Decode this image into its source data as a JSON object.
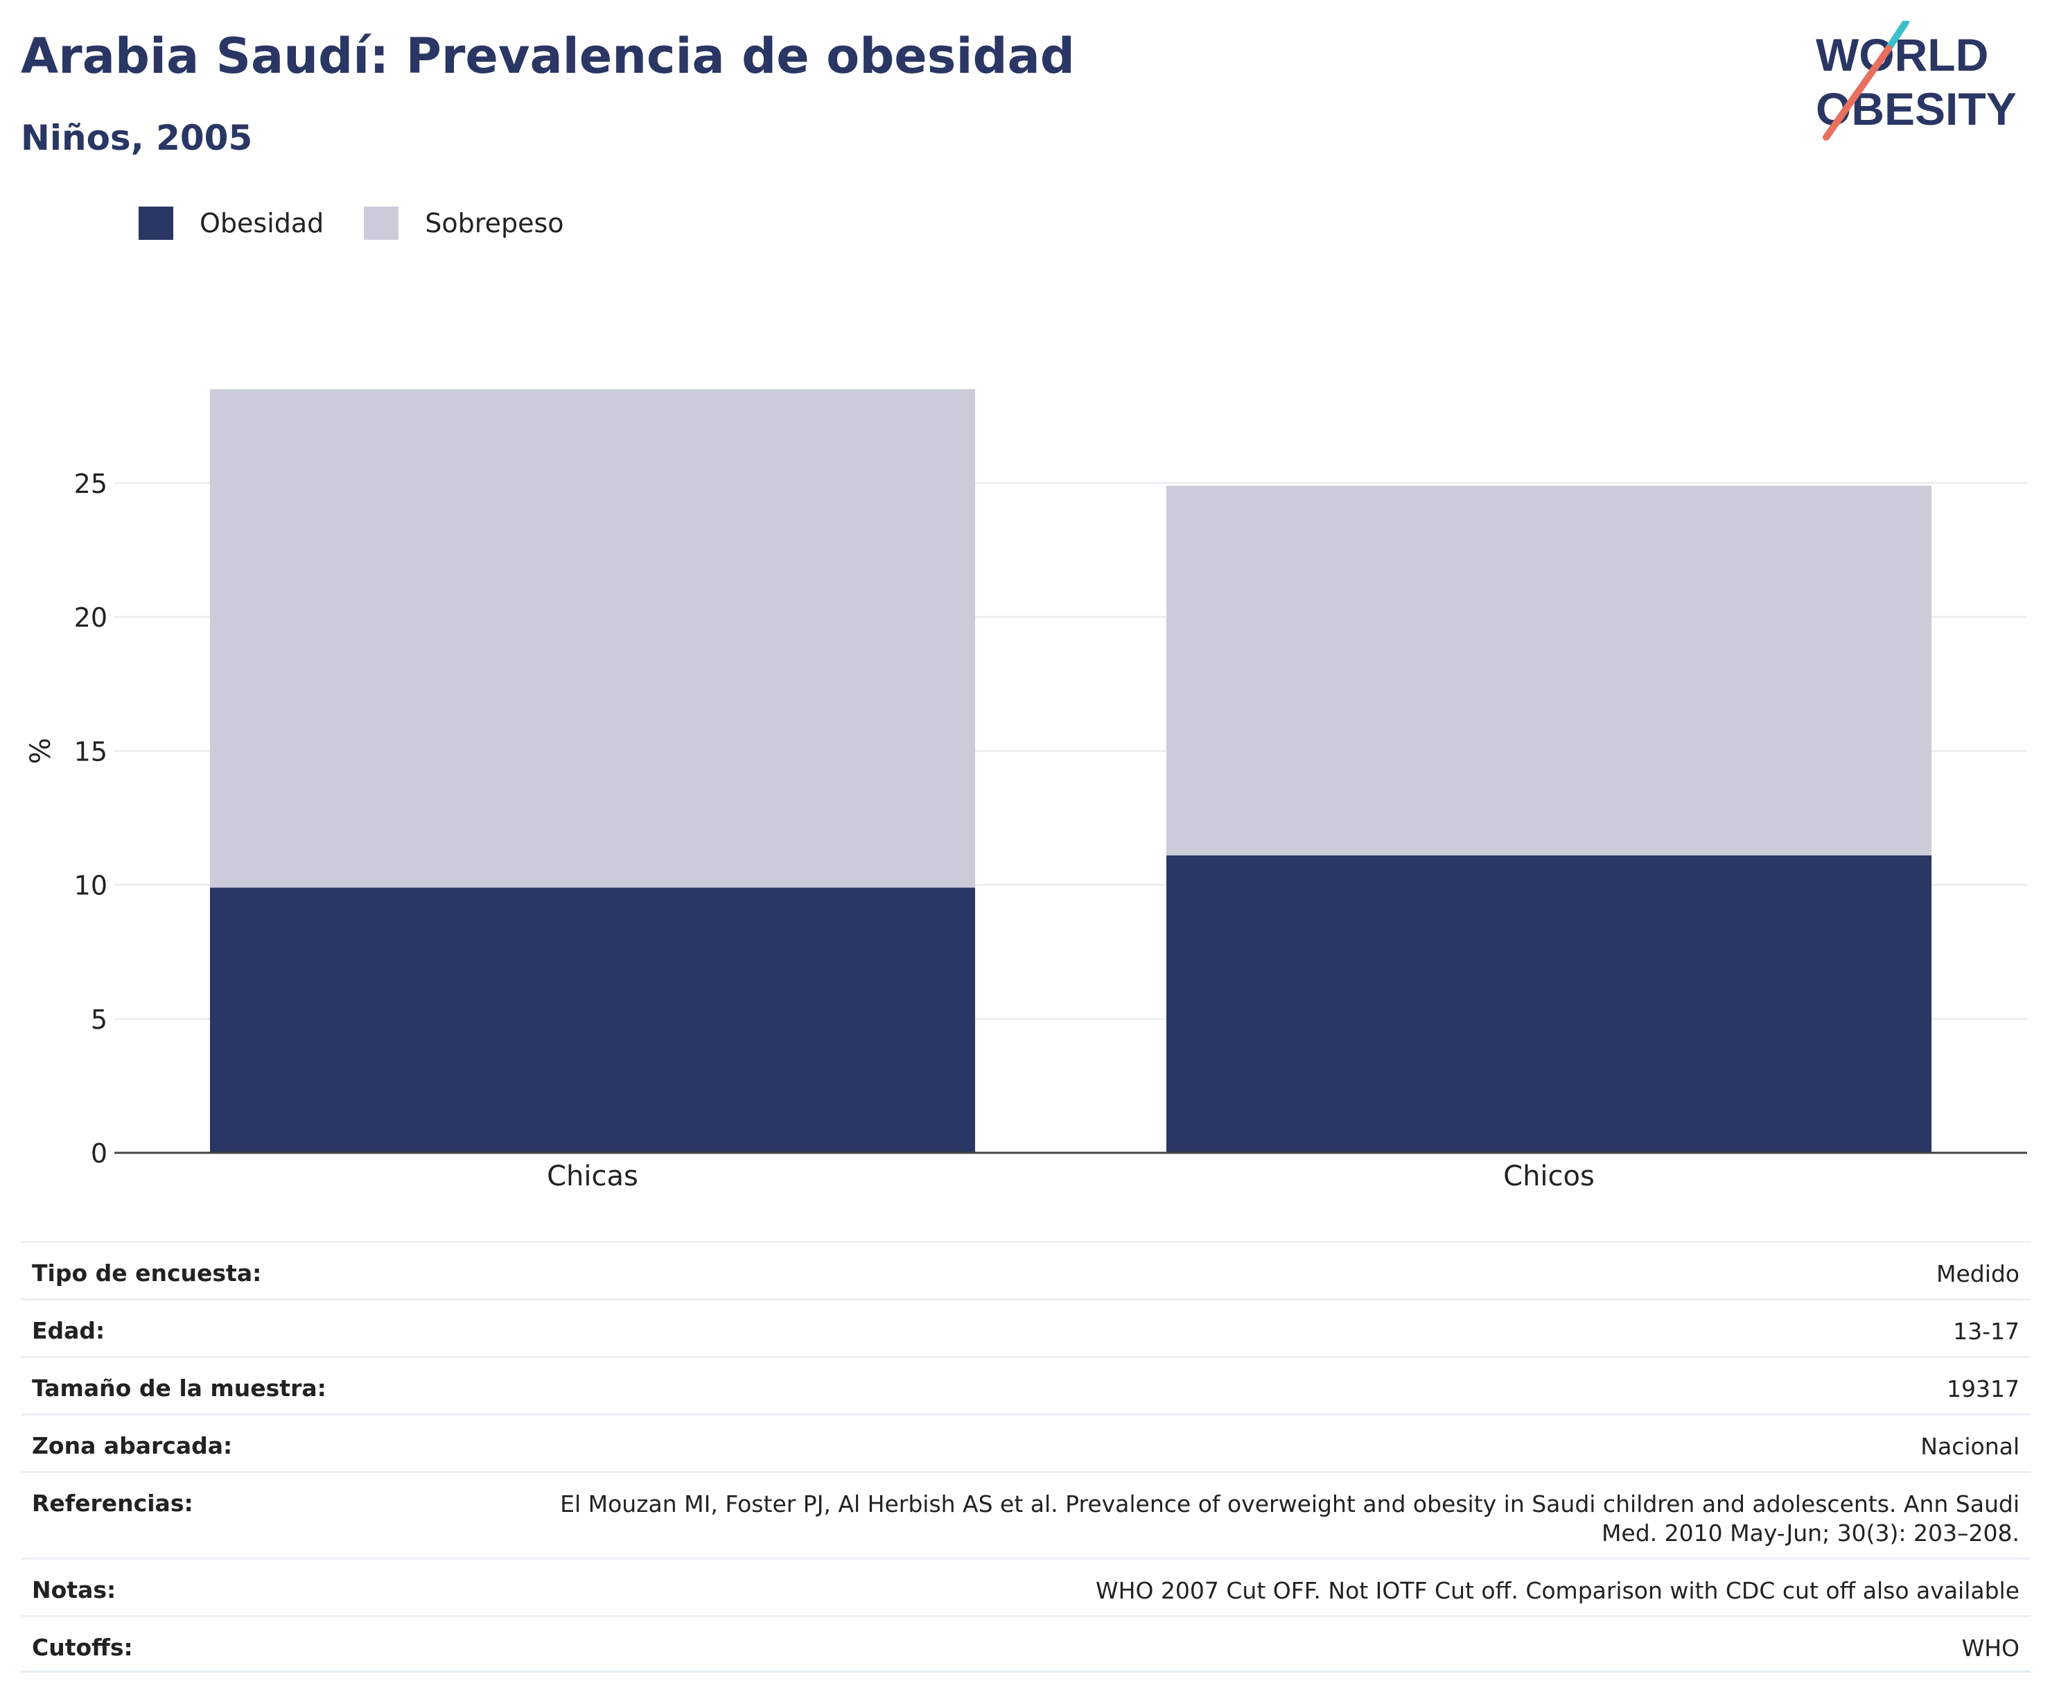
{
  "header": {
    "title": "Arabia Saudí: Prevalencia de obesidad",
    "subtitle": "Niños, 2005"
  },
  "logo": {
    "line1": "WORLD",
    "line2": "OBESITY",
    "accent_colors": [
      "#3bbfc9",
      "#e8705e"
    ]
  },
  "colors": {
    "obesidad": "#2a3663",
    "sobrepeso": "#cacdd9",
    "text": "#2a3663",
    "grid": "#eceef2"
  },
  "chart_data": {
    "type": "bar",
    "stacked": true,
    "categories": [
      "Chicas",
      "Chicos"
    ],
    "series": [
      {
        "name": "Obesidad",
        "values": [
          9.9,
          11.1
        ]
      },
      {
        "name": "Sobrepeso",
        "values": [
          18.6,
          13.8
        ]
      }
    ],
    "ylabel": "%",
    "ylim": [
      0,
      30
    ],
    "yticks": [
      0,
      5,
      10,
      15,
      20,
      25
    ],
    "grid": true,
    "legend": "top-left"
  },
  "meta": [
    {
      "key": "Tipo de encuesta:",
      "value": "Medido"
    },
    {
      "key": "Edad:",
      "value": "13-17"
    },
    {
      "key": "Tamaño de la muestra:",
      "value": "19317"
    },
    {
      "key": "Zona abarcada:",
      "value": "Nacional"
    },
    {
      "key": "Referencias:",
      "value": "El Mouzan MI, Foster PJ, Al Herbish AS et al. Prevalence of overweight and obesity in Saudi children and adolescents. Ann Saudi Med. 2010 May-Jun; 30(3): 203–208."
    },
    {
      "key": "Notas:",
      "value": "WHO 2007 Cut OFF. Not IOTF Cut off. Comparison with CDC cut off also available"
    },
    {
      "key": "Cutoffs:",
      "value": "WHO"
    }
  ]
}
